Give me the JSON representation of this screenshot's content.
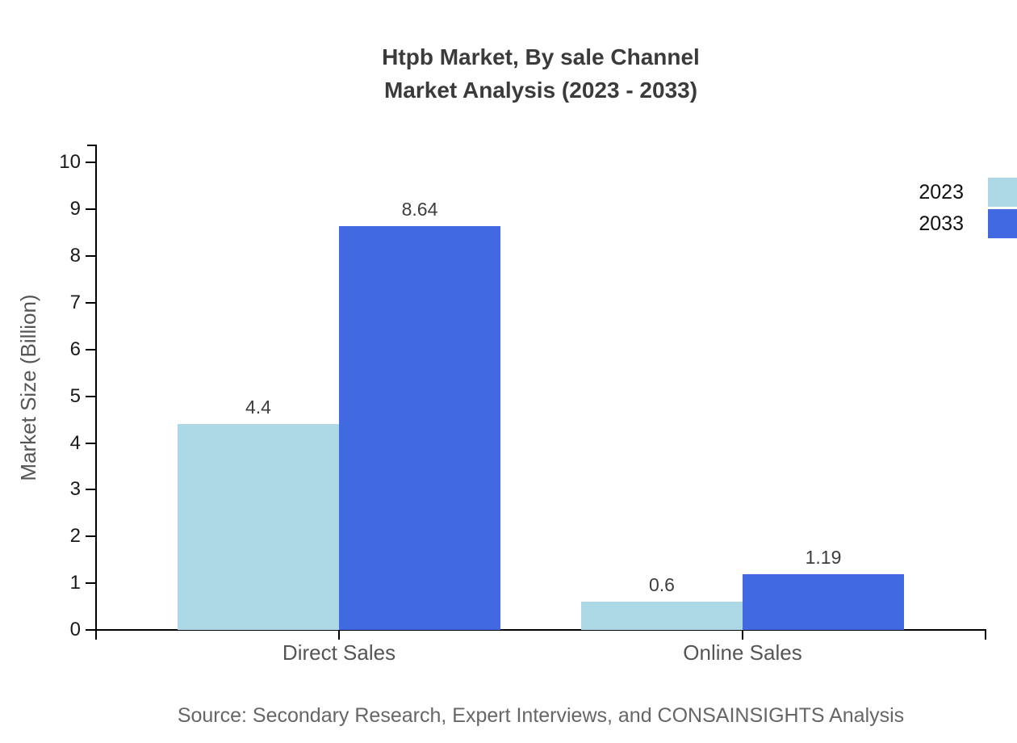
{
  "title": {
    "line1": "Htpb Market, By sale Channel",
    "line2": "Market Analysis (2023 - 2033)"
  },
  "source_note": "Source: Secondary Research, Expert Interviews, and CONSAINSIGHTS Analysis",
  "legend": {
    "items": [
      {
        "label": "2023",
        "color": "#ADD8E6"
      },
      {
        "label": "2033",
        "color": "#4169E1"
      }
    ]
  },
  "chart_data": {
    "type": "bar",
    "title": "Htpb Market, By sale Channel Market Analysis (2023 - 2033)",
    "categories": [
      "Direct Sales",
      "Online Sales"
    ],
    "series": [
      {
        "name": "2023",
        "color": "#ADD8E6",
        "values": [
          4.4,
          0.6
        ],
        "labels": [
          "4.4",
          "0.6"
        ]
      },
      {
        "name": "2033",
        "color": "#4169E1",
        "values": [
          8.64,
          1.19
        ],
        "labels": [
          "8.64",
          "1.19"
        ]
      }
    ],
    "xlabel": "",
    "ylabel": "Market Size (Billion)",
    "ylim": [
      0,
      10.37
    ],
    "yticks": [
      0,
      1,
      2,
      3,
      4,
      5,
      6,
      7,
      8,
      9,
      10
    ],
    "grid": false,
    "legend_position": "top-right",
    "axis_color": "#000000"
  }
}
